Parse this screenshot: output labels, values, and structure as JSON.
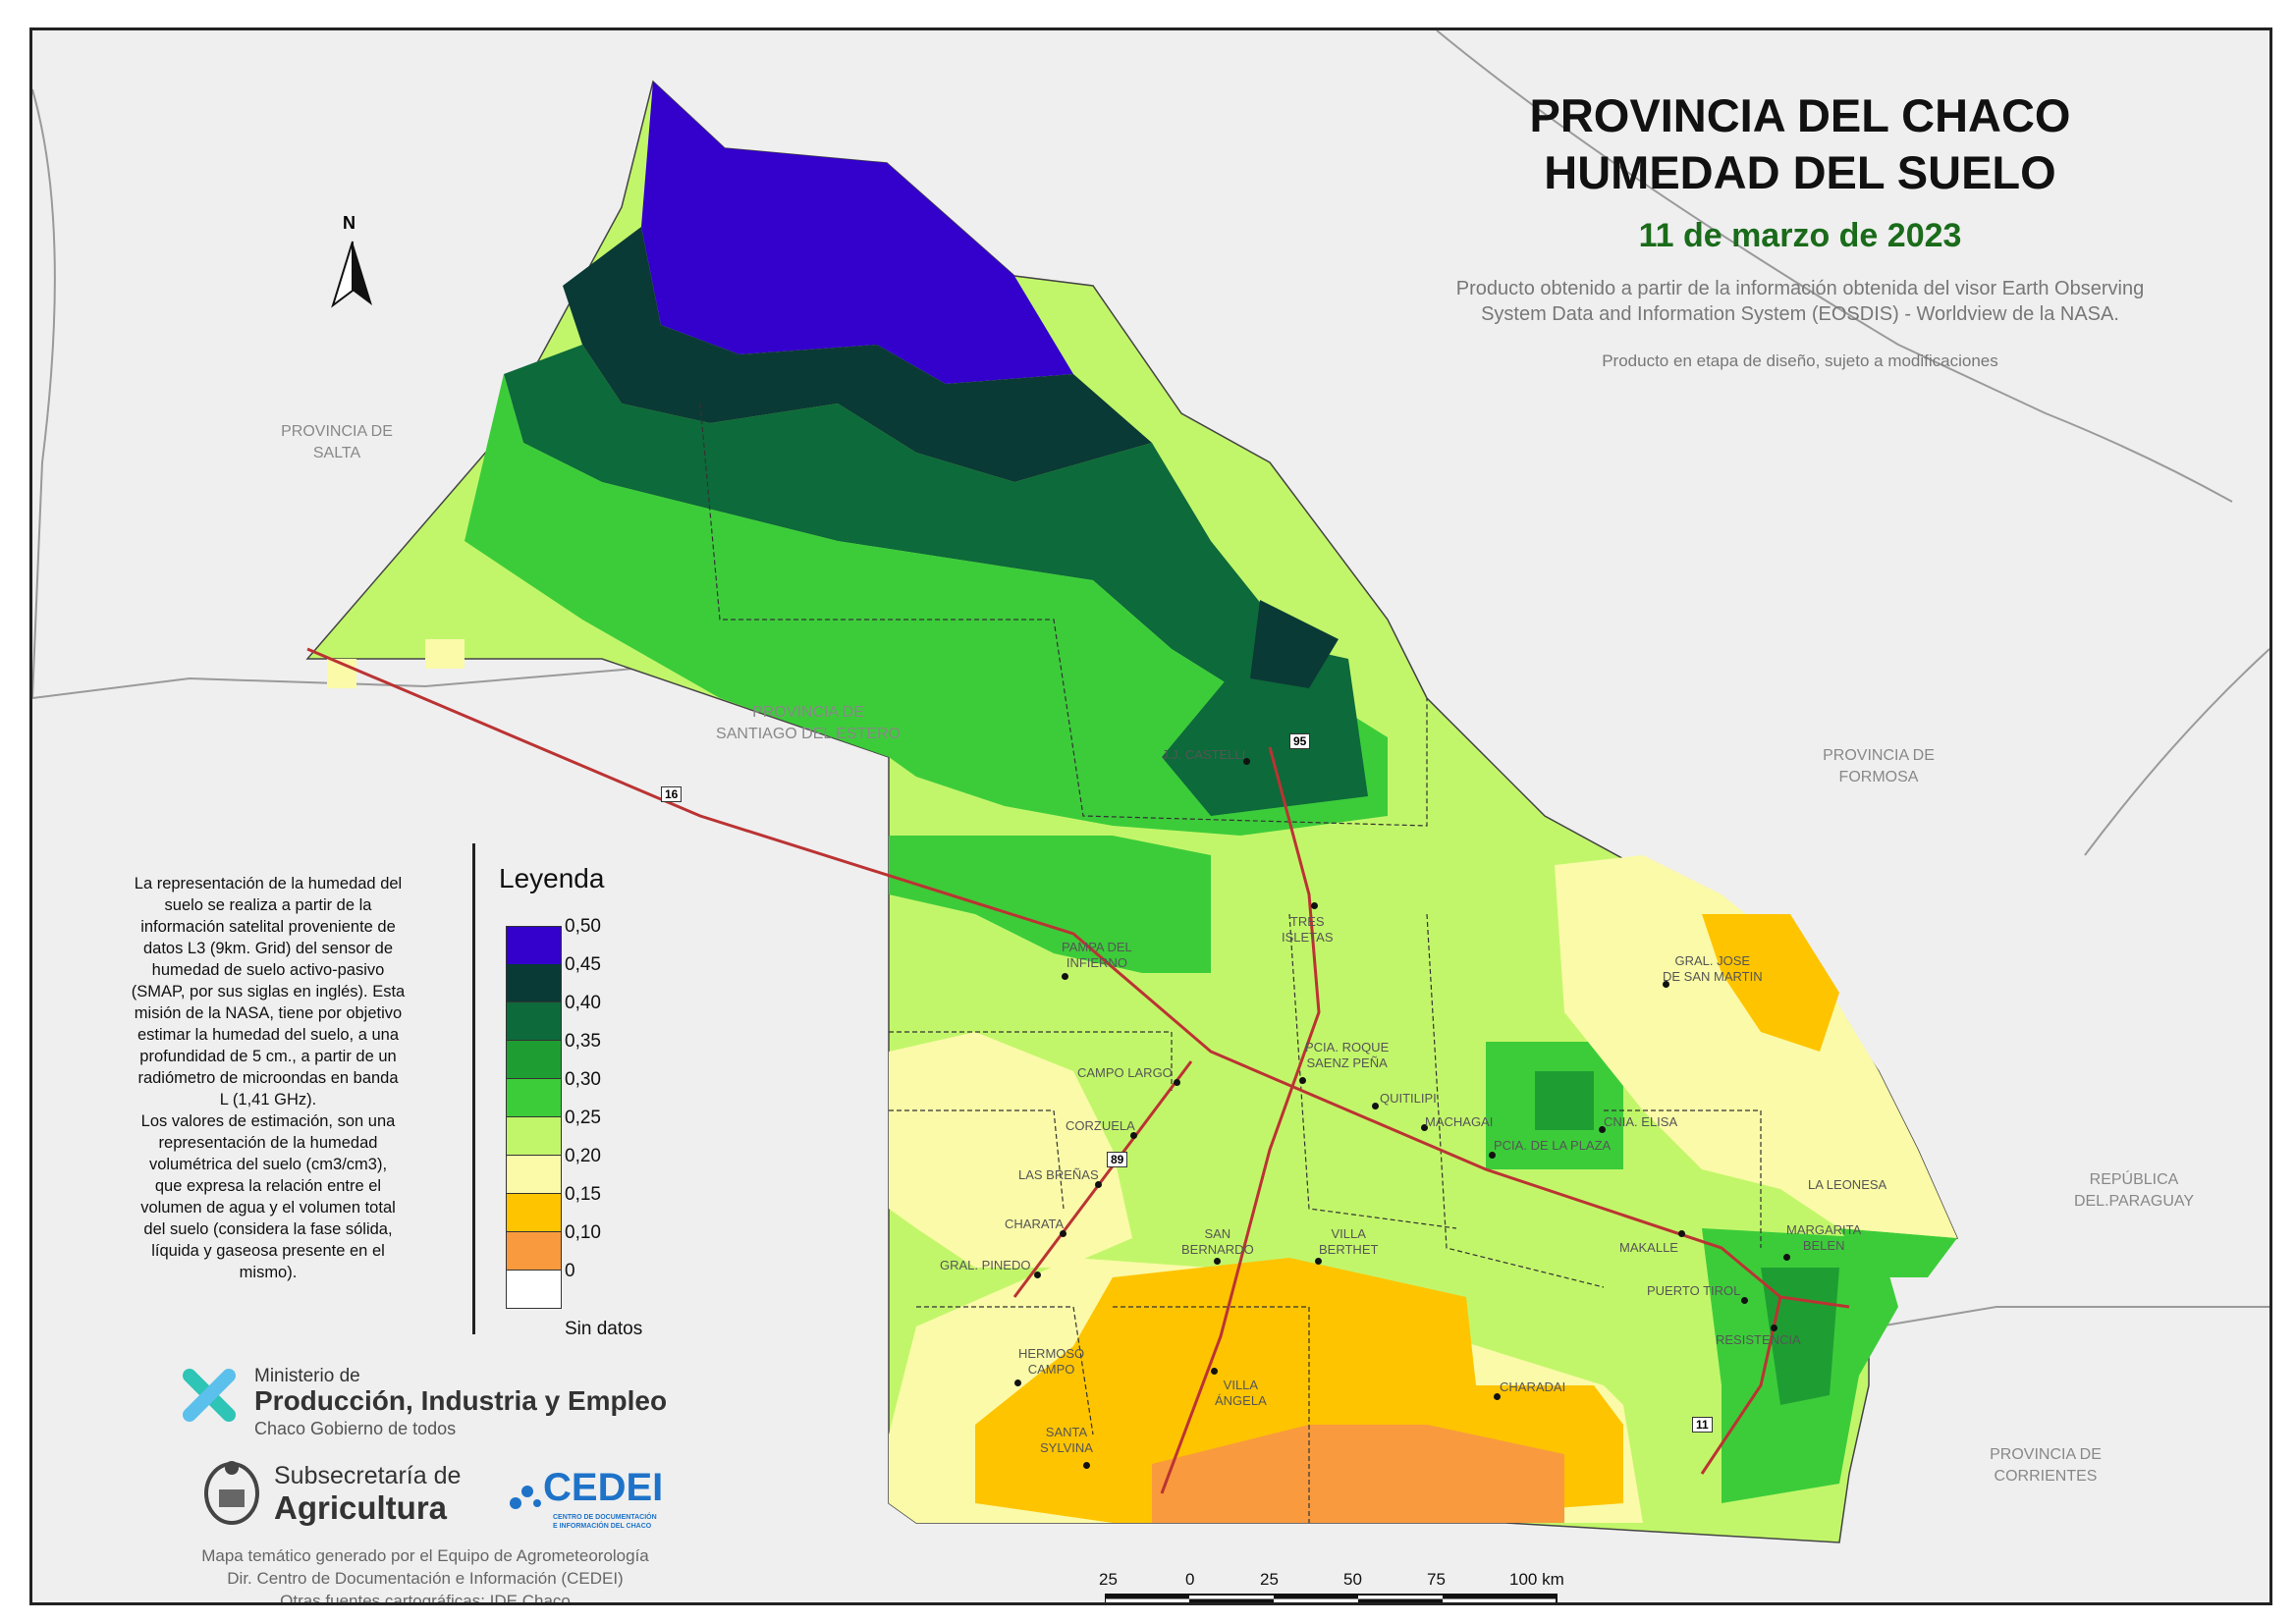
{
  "title_lines": [
    "PROVINCIA DEL CHACO",
    "HUMEDAD DEL SUELO"
  ],
  "date": "11 de marzo de 2023",
  "source_lines": [
    "Producto obtenido a partir de la información obtenida del visor Earth Observing",
    "System Data and Information System (EOSDIS) - Worldview de la NASA."
  ],
  "note": "Producto en etapa de diseño, sujeto a modificaciones",
  "north_label": "N",
  "provinces": {
    "salta": [
      "PROVINCIA DE",
      "SALTA"
    ],
    "santiago": [
      "PROVINCIA DE",
      "SANTIAGO DEL ESTERO"
    ],
    "formosa": [
      "PROVINCIA DE",
      "FORMOSA"
    ],
    "paraguay": [
      "REPÚBLICA",
      "DEL.PARAGUAY"
    ],
    "corrientes": [
      "PROVINCIA DE",
      "CORRIENTES"
    ]
  },
  "routes": {
    "r16": "16",
    "r95": "95",
    "r89": "89",
    "r11": "11"
  },
  "cities": {
    "castelli": [
      "J.J. CASTELLI"
    ],
    "tres_isletas": [
      "TRES",
      "ISLETAS"
    ],
    "pampa": [
      "PAMPA DEL",
      "INFIERNO"
    ],
    "gral_san_martin": [
      "GRAL. JOSE",
      "DE SAN MARTIN"
    ],
    "roque_pena": [
      "PCIA. ROQUE",
      "SAENZ PEÑA"
    ],
    "campo_largo": [
      "CAMPO LARGO"
    ],
    "quitilipi": [
      "QUITILIPI"
    ],
    "machagai": [
      "MACHAGAI"
    ],
    "cnia_elisa": [
      "CNIA. ELISA"
    ],
    "pcia_plaza": [
      "PCIA. DE LA PLAZA"
    ],
    "corzuela": [
      "CORZUELA"
    ],
    "las_brenas": [
      "LAS BREÑAS"
    ],
    "la_leonesa": [
      "LA LEONESA"
    ],
    "charata": [
      "CHARATA"
    ],
    "san_bernardo": [
      "SAN",
      "BERNARDO"
    ],
    "villa_berthet": [
      "VILLA",
      "BERTHET"
    ],
    "makalle": [
      "MAKALLE"
    ],
    "margarita_belen": [
      "MARGARITA",
      "BELEN"
    ],
    "gral_pinedo": [
      "GRAL. PINEDO"
    ],
    "puerto_tirol": [
      "PUERTO TIROL"
    ],
    "resistencia": [
      "RESISTENCIA"
    ],
    "hermoso_campo": [
      "HERMOSO",
      "CAMPO"
    ],
    "villa_angela": [
      "VILLA",
      "ÁNGELA"
    ],
    "charadai": [
      "CHARADAI"
    ],
    "santa_sylvina": [
      "SANTA",
      "SYLVINA"
    ]
  },
  "description_lines": [
    "La representación de la humedad del",
    "suelo se realiza a partir de la",
    "información satelital proveniente de",
    "datos L3 (9km. Grid) del sensor de",
    "humedad de suelo activo-pasivo",
    "(SMAP, por sus siglas en inglés). Esta",
    "misión de la NASA, tiene por objetivo",
    "estimar la humedad del suelo, a una",
    "profundidad de 5 cm., a partir de un",
    "radiómetro de microondas en banda",
    "L (1,41 GHz).",
    "Los valores de estimación, son una",
    "representación de la humedad",
    "volumétrica del suelo (cm3/cm3),",
    "que expresa la relación entre el",
    "volumen de agua y el volumen total",
    "del suelo (considera la fase sólida,",
    "líquida y gaseosa presente en el",
    "mismo)."
  ],
  "legend": {
    "title": "Leyenda",
    "items": [
      {
        "label": "0,50",
        "color": "#3300cc"
      },
      {
        "label": "0,45",
        "color": "#0a3a35"
      },
      {
        "label": "0,40",
        "color": "#0d6a3a"
      },
      {
        "label": "0,35",
        "color": "#1e9e32"
      },
      {
        "label": "0,30",
        "color": "#3ccc3a"
      },
      {
        "label": "0,25",
        "color": "#c2f66a"
      },
      {
        "label": "0,20",
        "color": "#fafaa8"
      },
      {
        "label": "0,15",
        "color": "#ffc400"
      },
      {
        "label": "0,10",
        "color": "#f99a3e"
      },
      {
        "label": "0",
        "color": "#ffffff"
      },
      {
        "label": "Sin datos",
        "color": ""
      }
    ]
  },
  "logos": {
    "ministerio_line1": "Ministerio de",
    "ministerio_line2": "Producción, Industria y Empleo",
    "ministerio_line3": "Chaco Gobierno de todos",
    "subsecretaria_line1": "Subsecretaría de",
    "subsecretaria_line2": "Agricultura",
    "cedei": "CEDEI",
    "cedei_sub": [
      "CENTRO DE DOCUMENTACIÓN",
      "E INFORMACIÓN DEL CHACO"
    ]
  },
  "credits": [
    "Mapa temático generado por el Equipo de Agrometeorología",
    "Dir. Centro de Documentación e Información (CEDEI)",
    "Otras fuentes cartográficas: IDE Chaco"
  ],
  "scale": {
    "labels": [
      "25",
      "0",
      "25",
      "50",
      "75",
      "100 km"
    ]
  }
}
